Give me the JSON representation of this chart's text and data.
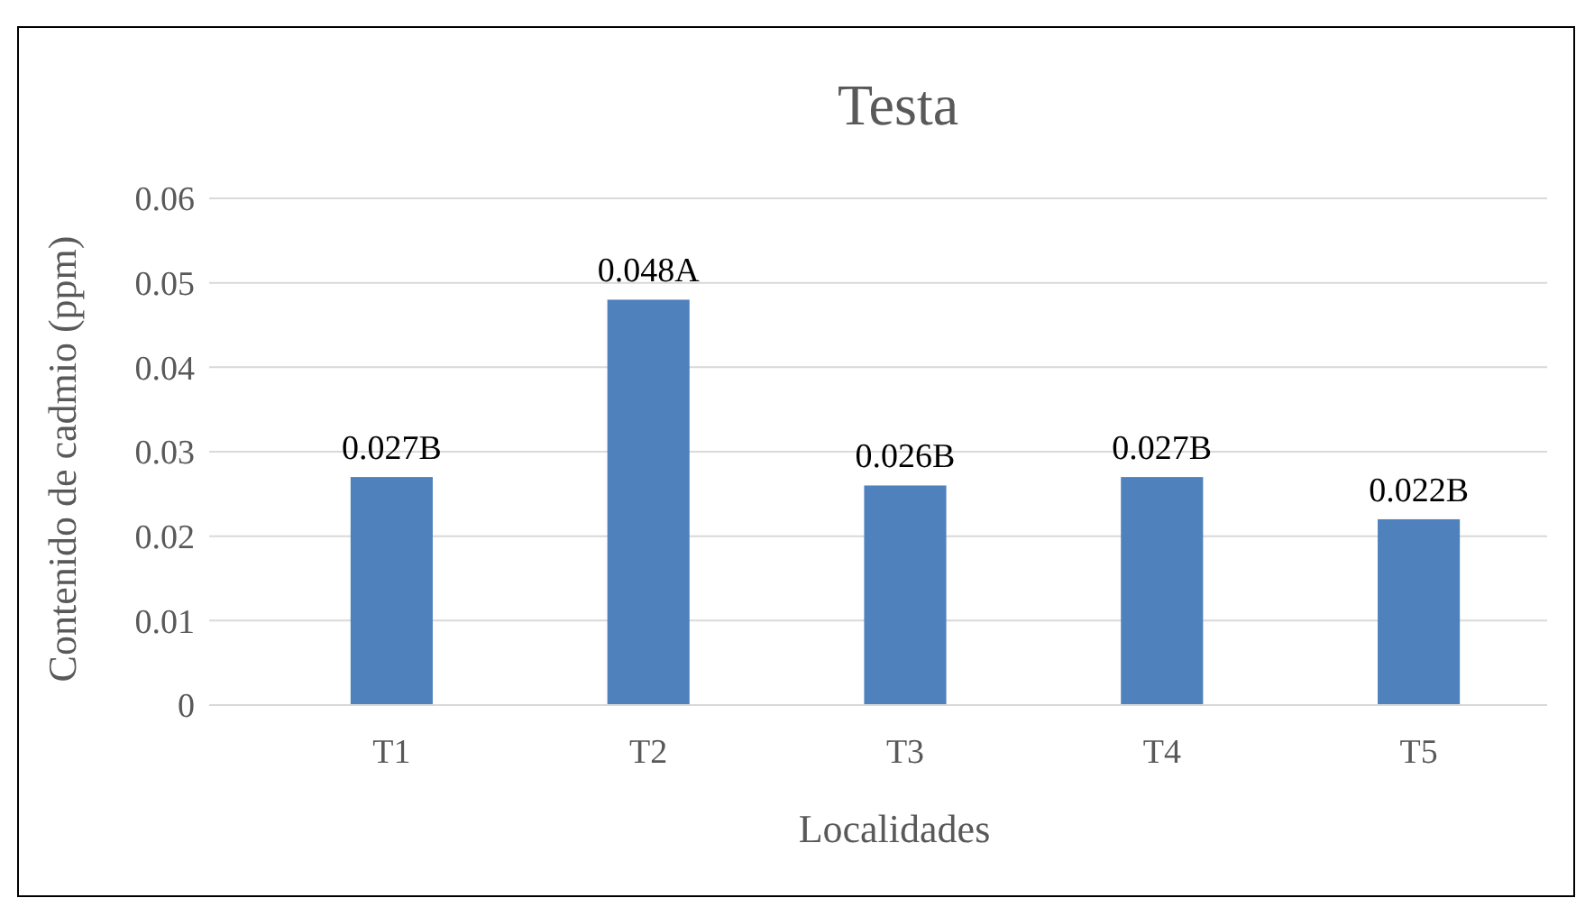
{
  "chart_data": {
    "type": "bar",
    "title": "Testa",
    "xlabel": "Localidades",
    "ylabel": "Contenido de cadmio (ppm)",
    "categories": [
      "T1",
      "T2",
      "T3",
      "T4",
      "T5"
    ],
    "values": [
      0.027,
      0.048,
      0.026,
      0.027,
      0.022
    ],
    "value_labels": [
      "0.027B",
      "0.048A",
      "0.026B",
      "0.027B",
      "0.022B"
    ],
    "color": "#4f81bd",
    "ylim": [
      0,
      0.06
    ],
    "yticks": [
      0,
      0.01,
      0.02,
      0.03,
      0.04,
      0.05,
      0.06
    ],
    "grid": "y"
  }
}
